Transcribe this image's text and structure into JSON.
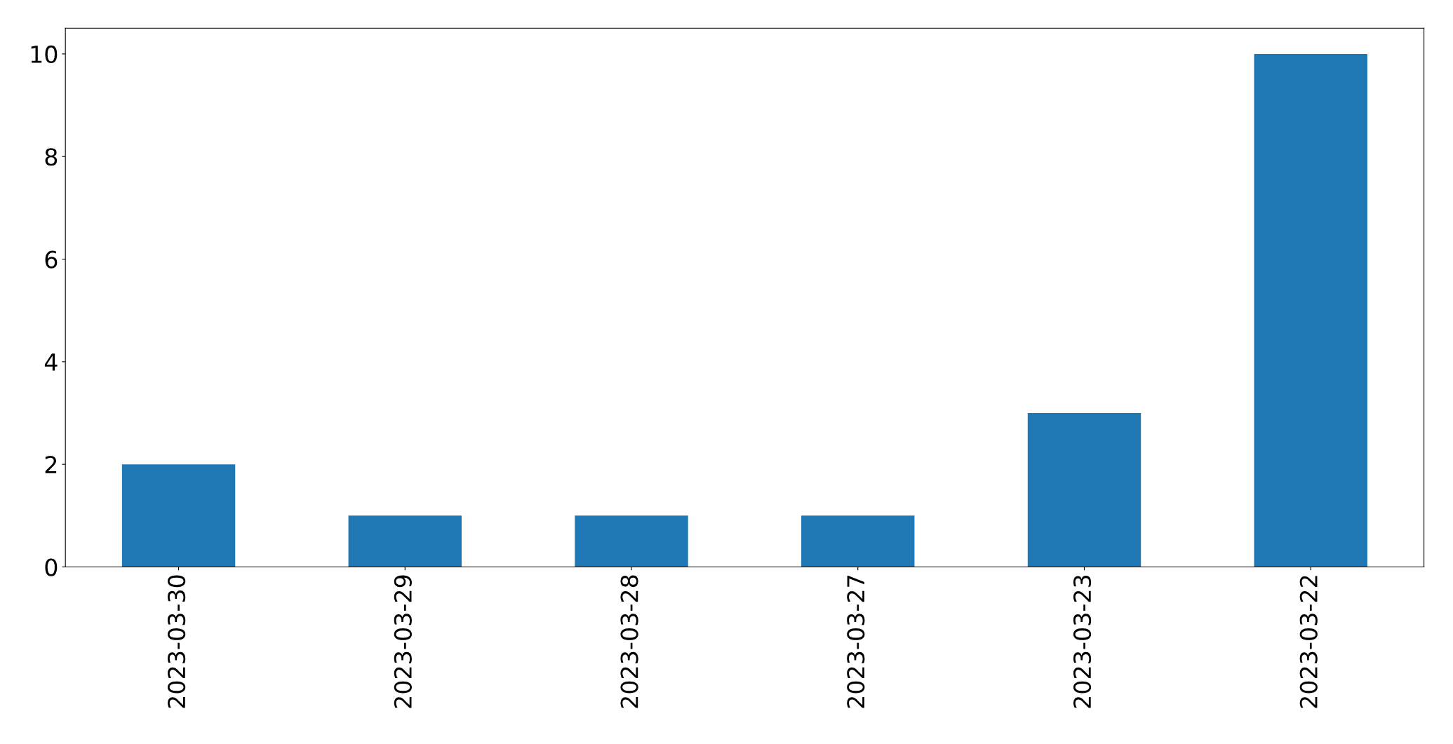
{
  "chart_data": {
    "type": "bar",
    "categories": [
      "2023-03-30",
      "2023-03-29",
      "2023-03-28",
      "2023-03-27",
      "2023-03-23",
      "2023-03-22"
    ],
    "values": [
      2,
      1,
      1,
      1,
      3,
      10
    ],
    "color": "#1f77b4",
    "ylim": [
      0,
      10.5
    ],
    "yticks": [
      0,
      2,
      4,
      6,
      8,
      10
    ],
    "grid": false
  }
}
